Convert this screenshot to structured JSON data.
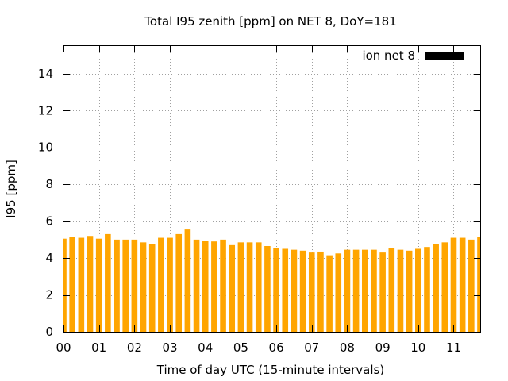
{
  "chart_data": {
    "type": "bar",
    "title": "Total I95 zenith [ppm] on NET 8, DoY=181",
    "xlabel": "Time of day UTC (15-minute intervals)",
    "ylabel": "I95 [ppm]",
    "ylim": [
      0,
      15.5
    ],
    "yticks": [
      "0",
      "2",
      "4",
      "6",
      "8",
      "10",
      "12",
      "14"
    ],
    "ytick_values": [
      0,
      2,
      4,
      6,
      8,
      10,
      12,
      14
    ],
    "xticks": [
      "00",
      "01",
      "02",
      "03",
      "04",
      "05",
      "06",
      "07",
      "08",
      "09",
      "10",
      "11"
    ],
    "xlim_hours": [
      0,
      11.75
    ],
    "interval_hours": 0.25,
    "grid": true,
    "legend_placement": "top-right",
    "bar_color": "#ffa500",
    "legend_swatch_color": "#000000",
    "series": [
      {
        "name": "ion net 8",
        "values": [
          5.05,
          5.15,
          5.1,
          5.2,
          5.05,
          5.3,
          5.0,
          5.0,
          5.0,
          4.85,
          4.75,
          5.1,
          5.1,
          5.3,
          5.55,
          5.0,
          4.95,
          4.9,
          5.0,
          4.7,
          4.85,
          4.85,
          4.85,
          4.65,
          4.55,
          4.5,
          4.45,
          4.4,
          4.3,
          4.35,
          4.15,
          4.25,
          4.45,
          4.45,
          4.45,
          4.45,
          4.3,
          4.55,
          4.45,
          4.4,
          4.5,
          4.6,
          4.75,
          4.85,
          5.1,
          5.1,
          5.0,
          5.15
        ]
      }
    ]
  }
}
